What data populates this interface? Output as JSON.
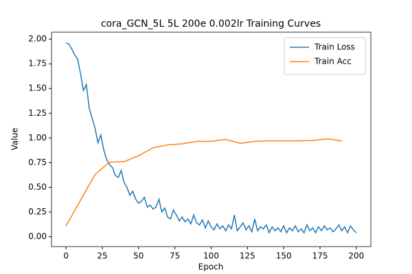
{
  "chart_data": {
    "type": "line",
    "title": "cora_GCN_5L  5L  200e  0.002lr  Training Curves",
    "x_label": "Epoch",
    "y_label": "Value",
    "xlim": [
      -10,
      210
    ],
    "ylim": [
      -0.1,
      2.07
    ],
    "xticks": [
      0,
      25,
      50,
      75,
      100,
      125,
      150,
      175,
      200
    ],
    "yticks": [
      {
        "value": 0,
        "label": "0.00"
      },
      {
        "value": 0.25,
        "label": "0.25"
      },
      {
        "value": 0.5,
        "label": "0.50"
      },
      {
        "value": 0.75,
        "label": "0.75"
      },
      {
        "value": 1,
        "label": "1.00"
      },
      {
        "value": 1.25,
        "label": "1.25"
      },
      {
        "value": 1.5,
        "label": "1.50"
      },
      {
        "value": 1.75,
        "label": "1.75"
      },
      {
        "value": 2,
        "label": "2.00"
      }
    ],
    "legend": "upper right",
    "series": [
      {
        "name": "Train Loss",
        "color": "#1f77b4",
        "x": [
          0,
          2,
          4,
          6,
          8,
          10,
          12,
          14,
          16,
          18,
          20,
          22,
          24,
          26,
          28,
          30,
          32,
          34,
          36,
          38,
          40,
          42,
          44,
          46,
          48,
          50,
          52,
          54,
          56,
          58,
          60,
          62,
          64,
          66,
          68,
          70,
          72,
          74,
          76,
          78,
          80,
          82,
          84,
          86,
          88,
          90,
          92,
          94,
          96,
          98,
          100,
          102,
          104,
          106,
          108,
          110,
          112,
          114,
          116,
          118,
          120,
          122,
          124,
          126,
          128,
          130,
          132,
          134,
          136,
          138,
          140,
          142,
          144,
          146,
          148,
          150,
          152,
          154,
          156,
          158,
          160,
          162,
          164,
          166,
          168,
          170,
          172,
          174,
          176,
          178,
          180,
          182,
          184,
          186,
          188,
          190,
          192,
          194,
          196,
          198,
          200
        ],
        "values": [
          1.96,
          1.95,
          1.9,
          1.84,
          1.8,
          1.65,
          1.48,
          1.54,
          1.3,
          1.2,
          1.1,
          0.95,
          1.03,
          0.88,
          0.78,
          0.73,
          0.7,
          0.62,
          0.6,
          0.67,
          0.55,
          0.5,
          0.42,
          0.46,
          0.38,
          0.34,
          0.36,
          0.4,
          0.3,
          0.32,
          0.28,
          0.3,
          0.38,
          0.25,
          0.29,
          0.2,
          0.18,
          0.27,
          0.22,
          0.16,
          0.2,
          0.15,
          0.18,
          0.13,
          0.22,
          0.14,
          0.12,
          0.17,
          0.09,
          0.16,
          0.1,
          0.07,
          0.13,
          0.08,
          0.11,
          0.06,
          0.12,
          0.08,
          0.22,
          0.06,
          0.1,
          0.14,
          0.07,
          0.11,
          0.05,
          0.18,
          0.06,
          0.1,
          0.08,
          0.12,
          0.04,
          0.1,
          0.06,
          0.09,
          0.05,
          0.11,
          0.04,
          0.09,
          0.06,
          0.11,
          0.05,
          0.08,
          0.04,
          0.12,
          0.06,
          0.09,
          0.04,
          0.1,
          0.06,
          0.11,
          0.07,
          0.09,
          0.05,
          0.08,
          0.12,
          0.06,
          0.1,
          0.04,
          0.11,
          0.07,
          0.04
        ]
      },
      {
        "name": "Train Acc",
        "color": "#ff7f0e",
        "x": [
          0,
          10,
          20,
          30,
          40,
          50,
          60,
          70,
          80,
          90,
          100,
          110,
          120,
          130,
          140,
          150,
          160,
          170,
          180,
          190
        ],
        "values": [
          0.11,
          0.37,
          0.63,
          0.755,
          0.76,
          0.82,
          0.9,
          0.93,
          0.94,
          0.965,
          0.965,
          0.985,
          0.945,
          0.965,
          0.97,
          0.97,
          0.97,
          0.975,
          0.99,
          0.97
        ]
      }
    ]
  }
}
